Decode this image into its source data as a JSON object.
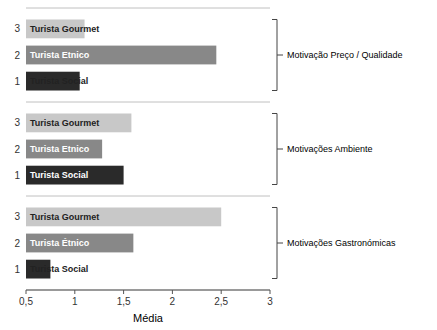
{
  "chart_data": {
    "type": "bar",
    "orientation": "horizontal",
    "categories": [
      "Motivação Preço / Qualidade",
      "Motivações Ambiente",
      "Motivações Gastronómicas"
    ],
    "series": [
      {
        "labels": [
          "Turista Gourmet",
          "Turista Gourmet",
          "Turista Gourmet"
        ],
        "cluster": 3,
        "color": "#c8c8c8",
        "values": [
          1.1,
          1.58,
          2.5
        ]
      },
      {
        "labels": [
          "Turista Etnico",
          "Turista Etnico",
          "Turista Étnico"
        ],
        "cluster": 2,
        "color": "#888888",
        "values": [
          2.45,
          1.28,
          1.6
        ]
      },
      {
        "labels": [
          "Turista Social",
          "Turista Social",
          "Turista Social"
        ],
        "cluster": 1,
        "color": "#2a2a2a",
        "values": [
          1.05,
          1.5,
          0.75
        ]
      }
    ],
    "xlabel": "Média",
    "xlim": [
      0.5,
      3.0
    ],
    "xticks": [
      {
        "value": 0.5,
        "label": "0,5"
      },
      1,
      {
        "value": 1.5,
        "label": "1,5"
      },
      2,
      {
        "value": 2.5,
        "label": "2,5"
      },
      3
    ],
    "grid": false
  }
}
